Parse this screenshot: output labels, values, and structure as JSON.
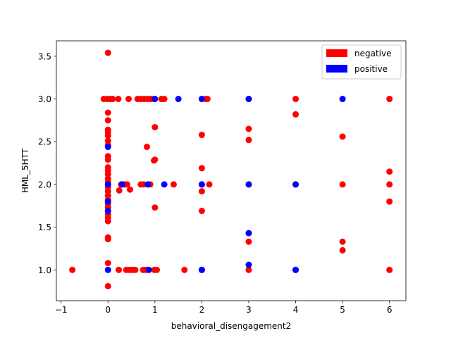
{
  "chart_data": {
    "type": "scatter",
    "xlabel": "behavioral_disengagement2",
    "ylabel": "HML_5HTT",
    "xlim": [
      -1.1,
      6.35
    ],
    "ylim": [
      0.64,
      3.68
    ],
    "x_ticks": [
      -1,
      0,
      1,
      2,
      3,
      4,
      5,
      6
    ],
    "y_ticks": [
      1.0,
      1.5,
      2.0,
      2.5,
      3.0,
      3.5
    ],
    "grid": false,
    "legend_position": "top-right",
    "series": [
      {
        "name": "negative",
        "color": "#ff0000",
        "points": [
          [
            -0.76,
            1.0
          ],
          [
            0,
            3.54
          ],
          [
            0,
            2.84
          ],
          [
            0,
            2.75
          ],
          [
            0,
            2.64
          ],
          [
            0,
            2.61
          ],
          [
            0,
            2.57
          ],
          [
            0,
            2.51
          ],
          [
            0,
            2.46
          ],
          [
            0,
            2.33
          ],
          [
            0,
            2.29
          ],
          [
            0,
            2.2
          ],
          [
            0,
            2.16
          ],
          [
            0,
            2.12
          ],
          [
            0,
            2.07
          ],
          [
            0,
            2.03
          ],
          [
            0,
            1.97
          ],
          [
            0,
            1.92
          ],
          [
            0,
            1.87
          ],
          [
            0,
            1.82
          ],
          [
            0,
            1.77
          ],
          [
            0,
            1.73
          ],
          [
            0,
            1.65
          ],
          [
            0,
            1.61
          ],
          [
            0,
            1.57
          ],
          [
            0,
            1.38
          ],
          [
            0,
            1.36
          ],
          [
            0,
            1.08
          ],
          [
            0,
            0.81
          ],
          [
            -0.09,
            3.0
          ],
          [
            -0.02,
            3.0
          ],
          [
            0.05,
            3.0
          ],
          [
            0.1,
            3.0
          ],
          [
            0.22,
            3.0
          ],
          [
            0.44,
            3.0
          ],
          [
            0.63,
            3.0
          ],
          [
            0.7,
            3.0
          ],
          [
            0.77,
            3.0
          ],
          [
            0.84,
            3.0
          ],
          [
            0.91,
            3.0
          ],
          [
            0.98,
            3.0
          ],
          [
            1.14,
            3.0
          ],
          [
            1.2,
            3.0
          ],
          [
            2.08,
            3.0
          ],
          [
            2.12,
            3.0
          ],
          [
            3.0,
            3.0
          ],
          [
            4.0,
            3.0
          ],
          [
            6.0,
            3.0
          ],
          [
            0.28,
            2.0
          ],
          [
            0.35,
            2.0
          ],
          [
            0.41,
            2.0
          ],
          [
            0.47,
            1.94
          ],
          [
            0.24,
            1.93
          ],
          [
            0.7,
            2.0
          ],
          [
            0.76,
            2.0
          ],
          [
            0.9,
            2.0
          ],
          [
            1.4,
            2.0
          ],
          [
            2.0,
            2.0
          ],
          [
            2.16,
            2.0
          ],
          [
            2.0,
            1.92
          ],
          [
            3.0,
            2.0
          ],
          [
            4.0,
            2.0
          ],
          [
            5.0,
            2.0
          ],
          [
            6.0,
            2.0
          ],
          [
            0.83,
            2.44
          ],
          [
            1.0,
            2.67
          ],
          [
            1.0,
            2.29
          ],
          [
            0.98,
            2.28
          ],
          [
            1.0,
            1.73
          ],
          [
            2.0,
            2.58
          ],
          [
            2.0,
            2.19
          ],
          [
            2.0,
            1.69
          ],
          [
            3.0,
            2.65
          ],
          [
            3.0,
            2.52
          ],
          [
            3.0,
            1.33
          ],
          [
            4.0,
            2.82
          ],
          [
            5.0,
            2.56
          ],
          [
            5.0,
            1.33
          ],
          [
            5.0,
            1.23
          ],
          [
            6.0,
            2.15
          ],
          [
            6.0,
            1.8
          ],
          [
            0.23,
            1.0
          ],
          [
            0.39,
            1.0
          ],
          [
            0.46,
            1.0
          ],
          [
            0.52,
            1.0
          ],
          [
            0.58,
            1.0
          ],
          [
            0.75,
            1.0
          ],
          [
            0.81,
            1.0
          ],
          [
            0.99,
            1.0
          ],
          [
            1.04,
            1.0
          ],
          [
            1.63,
            1.0
          ],
          [
            2.0,
            1.0
          ],
          [
            3.0,
            1.0
          ],
          [
            4.0,
            1.0
          ],
          [
            6.0,
            1.0
          ]
        ]
      },
      {
        "name": "positive",
        "color": "#0000ff",
        "points": [
          [
            0,
            2.44
          ],
          [
            0,
            2.0
          ],
          [
            0,
            1.8
          ],
          [
            0,
            1.69
          ],
          [
            0,
            1.0
          ],
          [
            0.3,
            2.0
          ],
          [
            0.85,
            2.0
          ],
          [
            1.2,
            2.0
          ],
          [
            1.0,
            3.0
          ],
          [
            1.5,
            3.0
          ],
          [
            2.0,
            3.0
          ],
          [
            2.0,
            2.0
          ],
          [
            2.0,
            1.0
          ],
          [
            3.0,
            3.0
          ],
          [
            3.0,
            2.0
          ],
          [
            3.0,
            1.43
          ],
          [
            3.0,
            1.06
          ],
          [
            4.0,
            2.0
          ],
          [
            4.0,
            1.0
          ],
          [
            5.0,
            3.0
          ],
          [
            0.87,
            1.0
          ]
        ]
      }
    ]
  }
}
